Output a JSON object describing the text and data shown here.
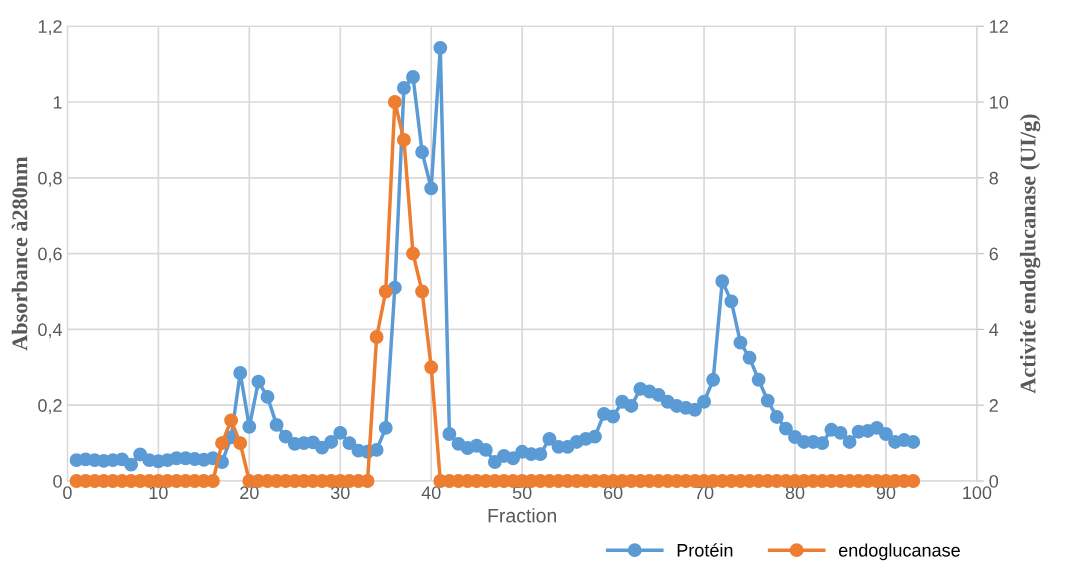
{
  "chart_data": {
    "type": "line",
    "xlabel": "Fraction",
    "ylabel": "Absorbance à280nm",
    "y2label": "Activité endoglucanase (UI/g)",
    "x": [
      1,
      2,
      3,
      4,
      5,
      6,
      7,
      8,
      9,
      10,
      11,
      12,
      13,
      14,
      15,
      16,
      17,
      18,
      19,
      20,
      21,
      22,
      23,
      24,
      25,
      26,
      27,
      28,
      29,
      30,
      31,
      32,
      33,
      34,
      35,
      36,
      37,
      38,
      39,
      40,
      41,
      42,
      43,
      44,
      45,
      46,
      47,
      48,
      49,
      50,
      51,
      52,
      53,
      54,
      55,
      56,
      57,
      58,
      59,
      60,
      61,
      62,
      63,
      64,
      65,
      66,
      67,
      68,
      69,
      70,
      71,
      72,
      73,
      74,
      75,
      76,
      77,
      78,
      79,
      80,
      81,
      82,
      83,
      84,
      85,
      86,
      87,
      88,
      89,
      90,
      91,
      92,
      93
    ],
    "series": [
      {
        "name": "Protéin",
        "color": "#5b9bd5",
        "values": [
          0.055,
          0.057,
          0.055,
          0.053,
          0.055,
          0.057,
          0.043,
          0.07,
          0.055,
          0.052,
          0.055,
          0.06,
          0.06,
          0.058,
          0.056,
          0.06,
          0.05,
          0.115,
          0.285,
          0.143,
          0.262,
          0.222,
          0.148,
          0.117,
          0.098,
          0.1,
          0.102,
          0.088,
          0.103,
          0.127,
          0.1,
          0.08,
          0.077,
          0.082,
          0.14,
          0.51,
          1.037,
          1.066,
          0.868,
          0.772,
          1.143,
          0.124,
          0.098,
          0.087,
          0.093,
          0.082,
          0.05,
          0.066,
          0.06,
          0.077,
          0.071,
          0.071,
          0.111,
          0.09,
          0.09,
          0.103,
          0.111,
          0.117,
          0.177,
          0.17,
          0.209,
          0.198,
          0.243,
          0.236,
          0.227,
          0.209,
          0.198,
          0.193,
          0.188,
          0.209,
          0.267,
          0.527,
          0.474,
          0.365,
          0.325,
          0.267,
          0.212,
          0.169,
          0.138,
          0.116,
          0.103,
          0.103,
          0.1,
          0.135,
          0.127,
          0.103,
          0.13,
          0.132,
          0.14,
          0.124,
          0.103,
          0.108,
          0.103
        ]
      },
      {
        "name": "endoglucanase",
        "color": "#ed7d31",
        "axis": "y2",
        "values": [
          0,
          0,
          0,
          0,
          0,
          0,
          0,
          0,
          0,
          0,
          0,
          0,
          0,
          0,
          0,
          0,
          1.0,
          1.6,
          1.0,
          0,
          0,
          0,
          0,
          0,
          0,
          0,
          0,
          0,
          0,
          0,
          0,
          0,
          0,
          3.8,
          5.0,
          10.0,
          9.0,
          6.0,
          5.0,
          3.0,
          0,
          0,
          0,
          0,
          0,
          0,
          0,
          0,
          0,
          0,
          0,
          0,
          0,
          0,
          0,
          0,
          0,
          0,
          0,
          0,
          0,
          0,
          0,
          0,
          0,
          0,
          0,
          0,
          0,
          0,
          0,
          0,
          0,
          0,
          0,
          0,
          0,
          0,
          0,
          0,
          0,
          0,
          0,
          0,
          0,
          0,
          0,
          0,
          0,
          0,
          0,
          0,
          0
        ]
      }
    ],
    "xlim": [
      0,
      100
    ],
    "xticks": [
      0,
      10,
      20,
      30,
      40,
      50,
      60,
      70,
      80,
      90,
      100
    ],
    "ylim": [
      0,
      1.2
    ],
    "yticks": [
      0,
      {
        "value": 0.2,
        "label": "0,2"
      },
      {
        "value": 0.4,
        "label": "0,4"
      },
      {
        "value": 0.6,
        "label": "0,6"
      },
      {
        "value": 0.8,
        "label": "0,8"
      },
      1,
      {
        "value": 1.2,
        "label": "1,2"
      }
    ],
    "y2lim": [
      0,
      12
    ],
    "y2ticks": [
      0,
      2,
      4,
      6,
      8,
      10,
      12
    ],
    "grid": true,
    "legend": "bottom right",
    "marker": "circle",
    "line_style": "solid"
  }
}
